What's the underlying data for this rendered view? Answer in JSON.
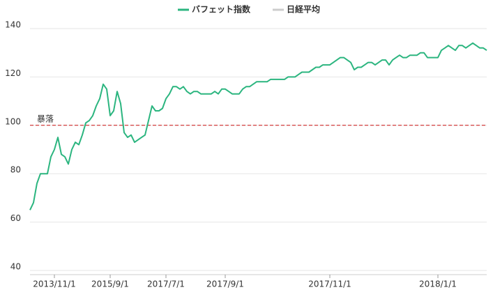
{
  "chart_data": {
    "type": "line",
    "categories": [
      null,
      null,
      null,
      null,
      null,
      null,
      null,
      "2013/11/1",
      null,
      null,
      null,
      null,
      null,
      null,
      null,
      null,
      null,
      null,
      null,
      null,
      null,
      null,
      null,
      "2015/9/1",
      null,
      null,
      null,
      null,
      null,
      null,
      null,
      null,
      null,
      null,
      null,
      null,
      null,
      null,
      null,
      "2017/7/1",
      null,
      null,
      null,
      null,
      null,
      null,
      null,
      null,
      null,
      null,
      null,
      null,
      null,
      null,
      null,
      null,
      "2017/9/1",
      null,
      null,
      null,
      null,
      null,
      null,
      null,
      null,
      null,
      null,
      null,
      null,
      null,
      null,
      null,
      null,
      null,
      null,
      null,
      null,
      null,
      null,
      null,
      null,
      null,
      null,
      null,
      null,
      null,
      "2017/11/1",
      null,
      null,
      null,
      null,
      null,
      null,
      null,
      null,
      null,
      null,
      null,
      null,
      null,
      null,
      null,
      null,
      null,
      null,
      null,
      null,
      null,
      null,
      null,
      null,
      null,
      null,
      null,
      null,
      null,
      null,
      "2018/1/1",
      null,
      null,
      null,
      null,
      null,
      null,
      null,
      null,
      null,
      null,
      null,
      null,
      null,
      null
    ],
    "series": [
      {
        "name": "バフェット指数",
        "color": "#2bb57f",
        "visible": true,
        "values": [
          65,
          68,
          76,
          80,
          80,
          80,
          87,
          90,
          95,
          88,
          87,
          84,
          90,
          93,
          92,
          96,
          101,
          102,
          104,
          108,
          111,
          117,
          115,
          104,
          106,
          114,
          109,
          97,
          95,
          96,
          93,
          94,
          95,
          96,
          102,
          108,
          106,
          106,
          107,
          111,
          113,
          116,
          116,
          115,
          116,
          114,
          113,
          114,
          114,
          113,
          113,
          113,
          113,
          114,
          113,
          115,
          115,
          114,
          113,
          113,
          113,
          115,
          116,
          116,
          117,
          118,
          118,
          118,
          118,
          119,
          119,
          119,
          119,
          119,
          120,
          120,
          120,
          121,
          122,
          122,
          122,
          123,
          124,
          124,
          125,
          125,
          125,
          126,
          127,
          128,
          128,
          127,
          126,
          123,
          124,
          124,
          125,
          126,
          126,
          125,
          126,
          127,
          127,
          125,
          127,
          128,
          129,
          128,
          128,
          129,
          129,
          129,
          130,
          130,
          128,
          128,
          128,
          128,
          131,
          132,
          133,
          132,
          131,
          133,
          133,
          132,
          133,
          134,
          133,
          132,
          132,
          131
        ]
      },
      {
        "name": "日経平均",
        "color": "#cccccc",
        "visible": false,
        "values": [
          null,
          null,
          null,
          null,
          null,
          null,
          null,
          null,
          null,
          null,
          null,
          null,
          null,
          null,
          null,
          null,
          null,
          null,
          null,
          null,
          null,
          null,
          null,
          null,
          null,
          null,
          null,
          null,
          null,
          null,
          null,
          null,
          null,
          null,
          null,
          null,
          null,
          null,
          null,
          null,
          null,
          null,
          null,
          null,
          null,
          null,
          null,
          null,
          null,
          null,
          null,
          null,
          null,
          null,
          null,
          null,
          null,
          null,
          null,
          null,
          null,
          null,
          null,
          null,
          null,
          null,
          null,
          null,
          null,
          null,
          null,
          null,
          null,
          null,
          null,
          null,
          null,
          null,
          null,
          null,
          null,
          null,
          null,
          null,
          null,
          null,
          null,
          null,
          null,
          null,
          null,
          null,
          null,
          null,
          null,
          null,
          null,
          null,
          null,
          null,
          null,
          null,
          null,
          null,
          null,
          null,
          null,
          null,
          null,
          null,
          null,
          null,
          null,
          null,
          null,
          null,
          null,
          null,
          null,
          null,
          null,
          null,
          null,
          null,
          null,
          null,
          null,
          null,
          null,
          null,
          null,
          null
        ]
      }
    ],
    "ylim": [
      40,
      140
    ],
    "yticks": [
      40,
      60,
      80,
      100,
      120,
      140
    ],
    "grid": true,
    "reference_line": {
      "value": 100,
      "label": "暴落",
      "color": "#cc1111"
    },
    "legend": "top"
  }
}
